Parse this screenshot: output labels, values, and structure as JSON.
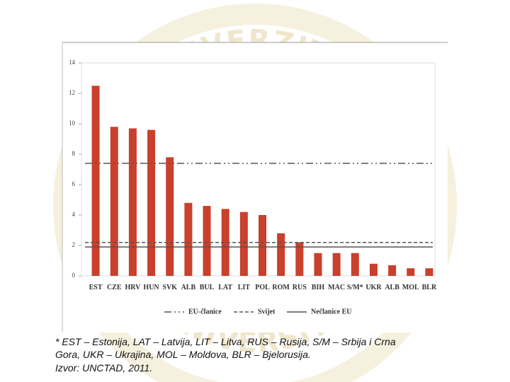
{
  "chart_data": {
    "type": "bar",
    "categories": [
      "EST",
      "CZE",
      "HRV",
      "HUN",
      "SVK",
      "ALB",
      "BUL",
      "LAT",
      "LIT",
      "POL",
      "ROM",
      "RUS",
      "BIH",
      "MAC",
      "S/M*",
      "UKR",
      "ALB",
      "MOL",
      "BLR"
    ],
    "values": [
      12.5,
      9.8,
      9.7,
      9.6,
      7.8,
      4.8,
      4.6,
      4.4,
      4.2,
      4.0,
      2.8,
      2.2,
      1.5,
      1.5,
      1.5,
      0.8,
      0.7,
      0.5,
      0.5
    ],
    "color": "#c9402c",
    "ylim": [
      0,
      14
    ],
    "yticks": [
      0,
      2,
      4,
      6,
      8,
      10,
      12,
      14
    ],
    "reference_lines": [
      {
        "name": "EU-članice",
        "value": 7.4,
        "style": "dashdot",
        "color": "#555555"
      },
      {
        "name": "Svijet",
        "value": 2.2,
        "style": "dashed",
        "color": "#555555"
      },
      {
        "name": "Nečlanice EU",
        "value": 1.9,
        "style": "solid",
        "color": "#555555"
      }
    ],
    "legend": "bottom"
  },
  "footnote": [
    "* EST – Estonija, LAT – Latvija, LIT – Litva, RUS – Rusija, S/M – Srbija i Crna",
    "Gora, UKR – Ukrajina, MOL – Moldova, BLR – Bjelorusija.",
    "Izvor: UNCTAD, 2011."
  ],
  "watermark": {
    "top": "UNIVERZITET",
    "bottom": "UNIVERSITY"
  }
}
